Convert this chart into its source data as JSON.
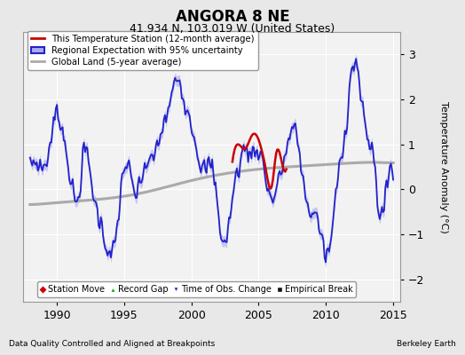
{
  "title": "ANGORA 8 NE",
  "subtitle": "41.934 N, 103.019 W (United States)",
  "ylabel": "Temperature Anomaly (°C)",
  "xlabel_left": "Data Quality Controlled and Aligned at Breakpoints",
  "xlabel_right": "Berkeley Earth",
  "xlim": [
    1987.5,
    2015.5
  ],
  "ylim": [
    -2.5,
    3.5
  ],
  "yticks": [
    -2,
    -1,
    0,
    1,
    2,
    3
  ],
  "xticks": [
    1990,
    1995,
    2000,
    2005,
    2010,
    2015
  ],
  "bg_color": "#e8e8e8",
  "plot_bg_color": "#f2f2f2",
  "regional_color": "#2222cc",
  "regional_fill_color": "#aaaaee",
  "station_color": "#cc0000",
  "global_color": "#aaaaaa",
  "title_fontsize": 12,
  "subtitle_fontsize": 9,
  "tick_fontsize": 9,
  "ylabel_fontsize": 8
}
